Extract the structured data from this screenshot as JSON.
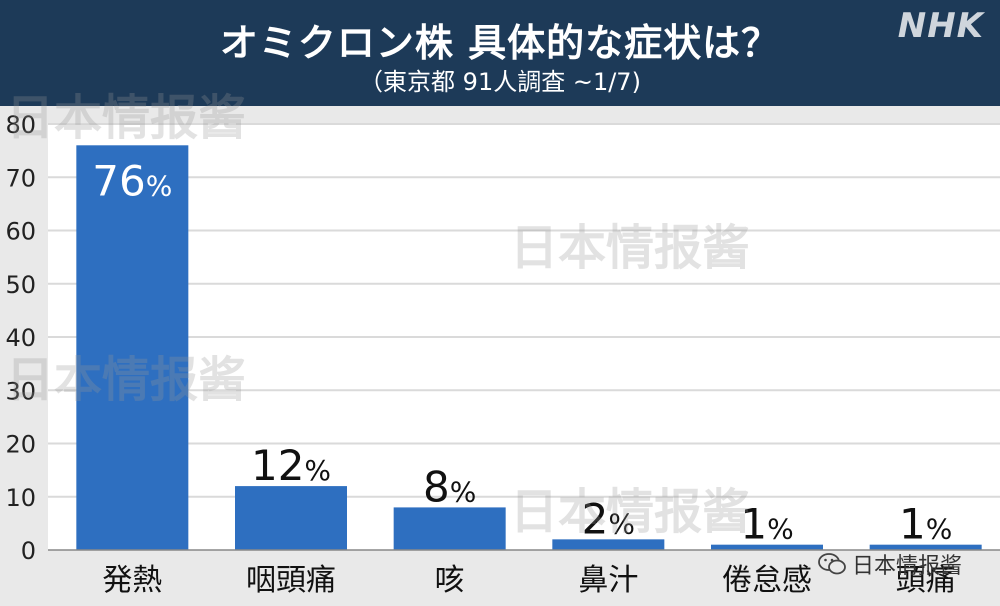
{
  "header": {
    "title": "オミクロン株 具体的な症状は？",
    "subtitle": "（東京都 91人調査 ~1/7)",
    "logo": "NHK"
  },
  "watermark": "日本情报酱",
  "footer": {
    "wechat_label": "日本情报酱"
  },
  "colors": {
    "header_bg": "#1d3a58",
    "bar": "#2e6fc0",
    "plot_bg": "#ffffff",
    "page_bg": "#e9e9e9"
  },
  "chart_data": {
    "type": "bar",
    "categories": [
      "発熱",
      "咽頭痛",
      "咳",
      "鼻汁",
      "倦怠感",
      "頭痛"
    ],
    "values": [
      76,
      12,
      8,
      2,
      1,
      1
    ],
    "value_suffix": "%",
    "ylim": [
      0,
      80
    ],
    "yticks": [
      0,
      10,
      20,
      30,
      40,
      50,
      60,
      70,
      80
    ],
    "grid": true,
    "legend": "none"
  }
}
